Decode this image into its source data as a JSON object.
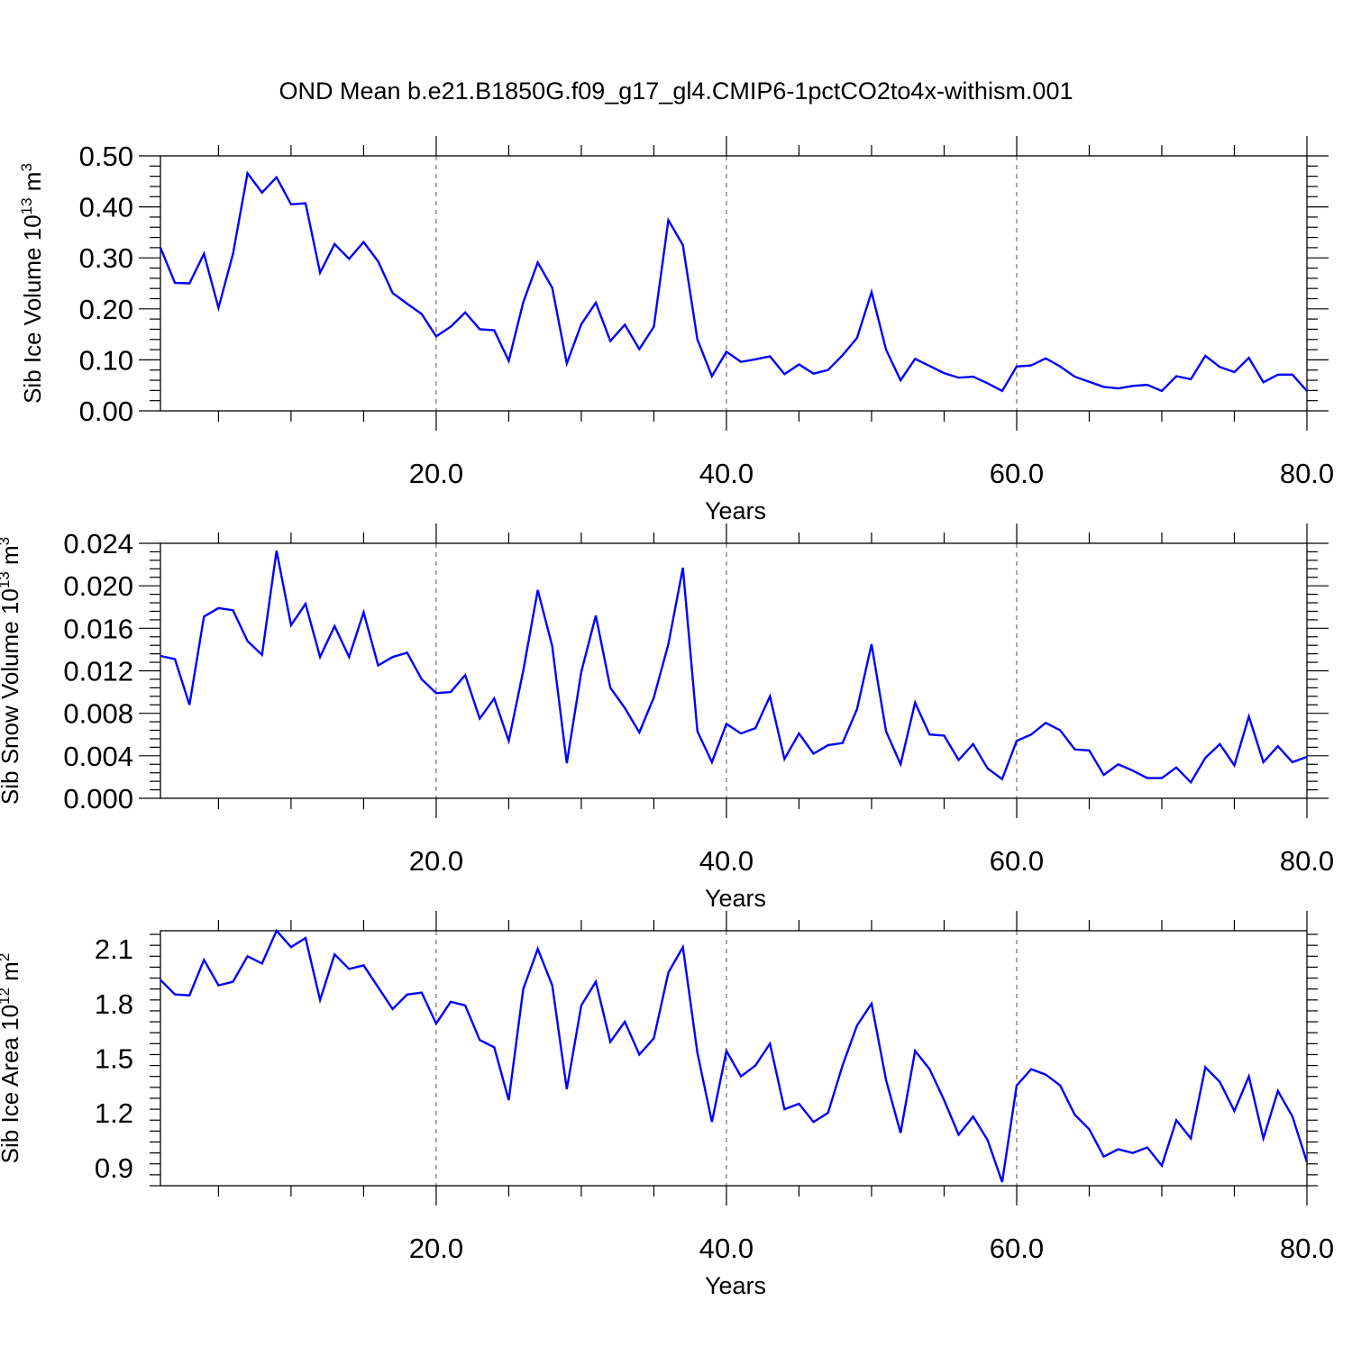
{
  "title": "OND Mean b.e21.B1850G.f09_g17_gl4.CMIP6-1pctCO2to4x-withism.001",
  "colors": {
    "series": "#0000ff",
    "axes": "#000000",
    "grid": "#555555"
  },
  "chart_data": [
    {
      "type": "line",
      "ylabel": {
        "main": "Sib Ice Volume 10",
        "exp": "13",
        "unit": " m",
        "unit_exp": "3"
      },
      "xlabel": "Years",
      "xlim": [
        1,
        80
      ],
      "ylim": [
        0,
        0.5
      ],
      "yticks": [
        0.0,
        0.1,
        0.2,
        0.3,
        0.4,
        0.5
      ],
      "ytick_labels": [
        "0.00",
        "0.10",
        "0.20",
        "0.30",
        "0.40",
        "0.50"
      ],
      "xticks": [
        20,
        40,
        60,
        80
      ],
      "xtick_labels": [
        "20.0",
        "40.0",
        "60.0",
        "80.0"
      ],
      "grid": "vertical dashed at x ticks",
      "series": [
        {
          "values": [
            0.32,
            0.251,
            0.25,
            0.308,
            0.202,
            0.308,
            0.466,
            0.428,
            0.458,
            0.405,
            0.407,
            0.271,
            0.327,
            0.298,
            0.331,
            0.293,
            0.231,
            0.21,
            0.19,
            0.146,
            0.165,
            0.193,
            0.16,
            0.158,
            0.098,
            0.213,
            0.291,
            0.241,
            0.093,
            0.17,
            0.212,
            0.137,
            0.169,
            0.121,
            0.165,
            0.374,
            0.325,
            0.14,
            0.068,
            0.116,
            0.096,
            0.101,
            0.107,
            0.072,
            0.091,
            0.073,
            0.08,
            0.109,
            0.143,
            0.233,
            0.12,
            0.06,
            0.102,
            0.088,
            0.074,
            0.065,
            0.067,
            0.054,
            0.039,
            0.087,
            0.089,
            0.103,
            0.087,
            0.067,
            0.057,
            0.047,
            0.044,
            0.049,
            0.051,
            0.039,
            0.068,
            0.062,
            0.108,
            0.086,
            0.076,
            0.104,
            0.056,
            0.071,
            0.071,
            0.039
          ]
        }
      ]
    },
    {
      "type": "line",
      "ylabel": {
        "main": "Sib Snow Volume 10",
        "exp": "13",
        "unit": " m",
        "unit_exp": "3"
      },
      "xlabel": "Years",
      "xlim": [
        1,
        80
      ],
      "ylim": [
        0,
        0.024
      ],
      "yticks": [
        0.0,
        0.004,
        0.008,
        0.012,
        0.016,
        0.02,
        0.024
      ],
      "ytick_labels": [
        "0.000",
        "0.004",
        "0.008",
        "0.012",
        "0.016",
        "0.020",
        "0.024"
      ],
      "xticks": [
        20,
        40,
        60,
        80
      ],
      "xtick_labels": [
        "20.0",
        "40.0",
        "60.0",
        "80.0"
      ],
      "grid": "vertical dashed at x ticks",
      "series": [
        {
          "values": [
            0.0134,
            0.0131,
            0.0088,
            0.0171,
            0.0179,
            0.0177,
            0.0148,
            0.0135,
            0.0233,
            0.0163,
            0.0183,
            0.0133,
            0.0162,
            0.0133,
            0.0175,
            0.0125,
            0.0133,
            0.0137,
            0.0112,
            0.0099,
            0.01,
            0.0116,
            0.0075,
            0.0094,
            0.0054,
            0.012,
            0.0196,
            0.0143,
            0.0033,
            0.0119,
            0.0172,
            0.0104,
            0.0085,
            0.0062,
            0.0095,
            0.0145,
            0.0217,
            0.0063,
            0.0034,
            0.007,
            0.0061,
            0.0066,
            0.0096,
            0.0037,
            0.0061,
            0.0042,
            0.005,
            0.0052,
            0.0084,
            0.0145,
            0.0063,
            0.0032,
            0.009,
            0.006,
            0.0059,
            0.0036,
            0.0051,
            0.0028,
            0.0018,
            0.0054,
            0.006,
            0.0071,
            0.0064,
            0.0046,
            0.0045,
            0.0022,
            0.0032,
            0.0026,
            0.0019,
            0.0019,
            0.0029,
            0.0015,
            0.0038,
            0.0051,
            0.0031,
            0.0077,
            0.0034,
            0.0049,
            0.0034,
            0.0039
          ]
        }
      ]
    },
    {
      "type": "line",
      "ylabel": {
        "main": "Sib Ice Area 10",
        "exp": "12",
        "unit": " m",
        "unit_exp": "2"
      },
      "xlabel": "Years",
      "xlim": [
        1,
        80
      ],
      "ylim": [
        0.8,
        2.2
      ],
      "yticks": [
        0.9,
        1.2,
        1.5,
        1.8,
        2.1
      ],
      "ytick_labels": [
        "0.9",
        "1.2",
        "1.5",
        "1.8",
        "2.1"
      ],
      "xticks": [
        20,
        40,
        60,
        80
      ],
      "xtick_labels": [
        "20.0",
        "40.0",
        "60.0",
        "80.0"
      ],
      "grid": "vertical dashed at x ticks",
      "series": [
        {
          "values": [
            1.93,
            1.85,
            1.845,
            2.04,
            1.9,
            1.92,
            2.06,
            2.02,
            2.2,
            2.11,
            2.16,
            1.82,
            2.07,
            1.99,
            2.01,
            1.89,
            1.77,
            1.85,
            1.86,
            1.69,
            1.81,
            1.79,
            1.6,
            1.56,
            1.27,
            1.88,
            2.1,
            1.9,
            1.33,
            1.79,
            1.92,
            1.59,
            1.7,
            1.52,
            1.61,
            1.97,
            2.11,
            1.53,
            1.15,
            1.54,
            1.4,
            1.46,
            1.58,
            1.22,
            1.25,
            1.15,
            1.2,
            1.46,
            1.68,
            1.8,
            1.38,
            1.09,
            1.54,
            1.44,
            1.27,
            1.08,
            1.18,
            1.05,
            0.82,
            1.35,
            1.44,
            1.41,
            1.35,
            1.19,
            1.11,
            0.96,
            1.0,
            0.98,
            1.01,
            0.91,
            1.16,
            1.06,
            1.45,
            1.37,
            1.21,
            1.4,
            1.06,
            1.32,
            1.18,
            0.93
          ]
        }
      ]
    }
  ]
}
